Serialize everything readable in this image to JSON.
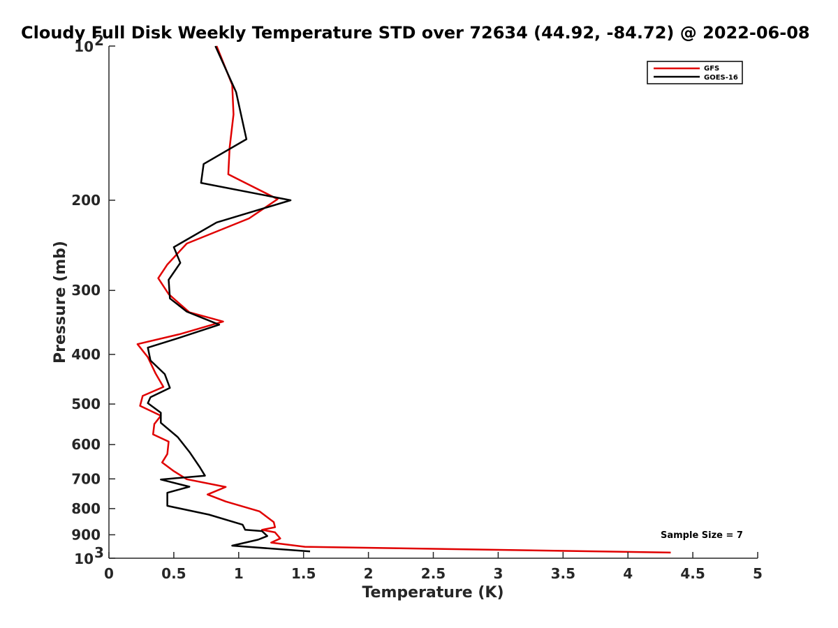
{
  "chart_data": {
    "type": "line",
    "title": "Cloudy Full Disk Weekly Temperature STD over 72634 (44.92, -84.72) @ 2022-06-08",
    "xlabel": "Temperature (K)",
    "ylabel": "Pressure (mb)",
    "xlim": [
      0,
      5
    ],
    "ylim": [
      100,
      1000
    ],
    "yscale": "log",
    "yreversed": true,
    "grid": false,
    "legend_position": "top-right",
    "xticks": [
      {
        "value": 0,
        "label": "0"
      },
      {
        "value": 0.5,
        "label": "0.5"
      },
      {
        "value": 1,
        "label": "1"
      },
      {
        "value": 1.5,
        "label": "1.5"
      },
      {
        "value": 2,
        "label": "2"
      },
      {
        "value": 2.5,
        "label": "2.5"
      },
      {
        "value": 3,
        "label": "3"
      },
      {
        "value": 3.5,
        "label": "3.5"
      },
      {
        "value": 4,
        "label": "4"
      },
      {
        "value": 4.5,
        "label": "4.5"
      },
      {
        "value": 5,
        "label": "5"
      }
    ],
    "yticks": [
      {
        "value": 100,
        "base": "10",
        "exp": "2"
      },
      {
        "value": 200,
        "base": "200",
        "exp": ""
      },
      {
        "value": 300,
        "base": "300",
        "exp": ""
      },
      {
        "value": 400,
        "base": "400",
        "exp": ""
      },
      {
        "value": 500,
        "base": "500",
        "exp": ""
      },
      {
        "value": 600,
        "base": "600",
        "exp": ""
      },
      {
        "value": 700,
        "base": "700",
        "exp": ""
      },
      {
        "value": 800,
        "base": "800",
        "exp": ""
      },
      {
        "value": 900,
        "base": "900",
        "exp": ""
      },
      {
        "value": 1000,
        "base": "10",
        "exp": "3"
      }
    ],
    "annotation": "Sample Size = 7",
    "series": [
      {
        "name": "GFS",
        "color": "#e00000",
        "points": [
          [
            0.83,
            100
          ],
          [
            0.95,
            119
          ],
          [
            0.96,
            136
          ],
          [
            0.93,
            158
          ],
          [
            0.92,
            178
          ],
          [
            1.3,
            199
          ],
          [
            1.08,
            217
          ],
          [
            0.6,
            243
          ],
          [
            0.45,
            267
          ],
          [
            0.38,
            284
          ],
          [
            0.46,
            305
          ],
          [
            0.62,
            331
          ],
          [
            0.88,
            345
          ],
          [
            0.55,
            365
          ],
          [
            0.22,
            382
          ],
          [
            0.3,
            405
          ],
          [
            0.36,
            436
          ],
          [
            0.42,
            463
          ],
          [
            0.26,
            482
          ],
          [
            0.24,
            504
          ],
          [
            0.4,
            527
          ],
          [
            0.35,
            547
          ],
          [
            0.34,
            573
          ],
          [
            0.46,
            592
          ],
          [
            0.45,
            626
          ],
          [
            0.41,
            650
          ],
          [
            0.5,
            676
          ],
          [
            0.6,
            701
          ],
          [
            0.9,
            726
          ],
          [
            0.76,
            751
          ],
          [
            0.9,
            775
          ],
          [
            1.16,
            810
          ],
          [
            1.27,
            850
          ],
          [
            1.28,
            870
          ],
          [
            1.18,
            880
          ],
          [
            1.28,
            890
          ],
          [
            1.32,
            915
          ],
          [
            1.25,
            932
          ],
          [
            1.51,
            950
          ],
          [
            4.33,
            975
          ]
        ]
      },
      {
        "name": "GOES-16",
        "color": "#000000",
        "points": [
          [
            0.82,
            100
          ],
          [
            0.98,
            123
          ],
          [
            1.06,
            152
          ],
          [
            0.73,
            170
          ],
          [
            0.71,
            185
          ],
          [
            1.4,
            200
          ],
          [
            0.83,
            221
          ],
          [
            0.5,
            247
          ],
          [
            0.55,
            265
          ],
          [
            0.46,
            286
          ],
          [
            0.47,
            311
          ],
          [
            0.6,
            330
          ],
          [
            0.85,
            350
          ],
          [
            0.53,
            372
          ],
          [
            0.3,
            388
          ],
          [
            0.32,
            411
          ],
          [
            0.43,
            437
          ],
          [
            0.47,
            465
          ],
          [
            0.32,
            485
          ],
          [
            0.3,
            498
          ],
          [
            0.4,
            520
          ],
          [
            0.4,
            544
          ],
          [
            0.53,
            580
          ],
          [
            0.62,
            620
          ],
          [
            0.7,
            664
          ],
          [
            0.74,
            690
          ],
          [
            0.4,
            702
          ],
          [
            0.62,
            725
          ],
          [
            0.45,
            745
          ],
          [
            0.45,
            768
          ],
          [
            0.45,
            790
          ],
          [
            0.77,
            822
          ],
          [
            1.03,
            860
          ],
          [
            1.05,
            880
          ],
          [
            1.18,
            885
          ],
          [
            1.22,
            905
          ],
          [
            1.15,
            920
          ],
          [
            0.95,
            945
          ],
          [
            1.55,
            970
          ]
        ]
      }
    ]
  }
}
